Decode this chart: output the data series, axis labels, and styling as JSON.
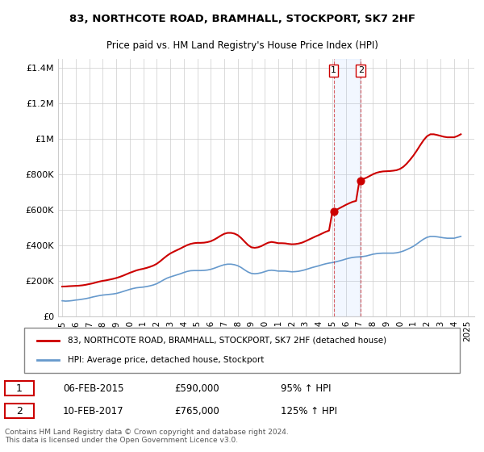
{
  "title": "83, NORTHCOTE ROAD, BRAMHALL, STOCKPORT, SK7 2HF",
  "subtitle": "Price paid vs. HM Land Registry's House Price Index (HPI)",
  "ylabel": "",
  "xlabel": "",
  "background_color": "#ffffff",
  "grid_color": "#cccccc",
  "plot_bg_color": "#ffffff",
  "sale1": {
    "date": 2015.1,
    "price": 590000,
    "label": "1",
    "pct": "95% ↑ HPI",
    "date_str": "06-FEB-2015"
  },
  "sale2": {
    "date": 2017.1,
    "price": 765000,
    "label": "2",
    "pct": "125% ↑ HPI",
    "date_str": "10-FEB-2017"
  },
  "hpi_color": "#6699cc",
  "price_color": "#cc0000",
  "marker_color": "#cc0000",
  "ylim": [
    0,
    1450000
  ],
  "xlim_start": 1995,
  "xlim_end": 2025.5,
  "yticks": [
    0,
    200000,
    400000,
    600000,
    800000,
    1000000,
    1200000,
    1400000
  ],
  "ytick_labels": [
    "£0",
    "£200K",
    "£400K",
    "£600K",
    "£800K",
    "£1M",
    "£1.2M",
    "£1.4M"
  ],
  "xticks": [
    1995,
    1996,
    1997,
    1998,
    1999,
    2000,
    2001,
    2002,
    2003,
    2004,
    2005,
    2006,
    2007,
    2008,
    2009,
    2010,
    2011,
    2012,
    2013,
    2014,
    2015,
    2016,
    2017,
    2018,
    2019,
    2020,
    2021,
    2022,
    2023,
    2024,
    2025
  ],
  "legend_label_red": "83, NORTHCOTE ROAD, BRAMHALL, STOCKPORT, SK7 2HF (detached house)",
  "legend_label_blue": "HPI: Average price, detached house, Stockport",
  "footer": "Contains HM Land Registry data © Crown copyright and database right 2024.\nThis data is licensed under the Open Government Licence v3.0.",
  "hpi_data_x": [
    1995.0,
    1995.25,
    1995.5,
    1995.75,
    1996.0,
    1996.25,
    1996.5,
    1996.75,
    1997.0,
    1997.25,
    1997.5,
    1997.75,
    1998.0,
    1998.25,
    1998.5,
    1998.75,
    1999.0,
    1999.25,
    1999.5,
    1999.75,
    2000.0,
    2000.25,
    2000.5,
    2000.75,
    2001.0,
    2001.25,
    2001.5,
    2001.75,
    2002.0,
    2002.25,
    2002.5,
    2002.75,
    2003.0,
    2003.25,
    2003.5,
    2003.75,
    2004.0,
    2004.25,
    2004.5,
    2004.75,
    2005.0,
    2005.25,
    2005.5,
    2005.75,
    2006.0,
    2006.25,
    2006.5,
    2006.75,
    2007.0,
    2007.25,
    2007.5,
    2007.75,
    2008.0,
    2008.25,
    2008.5,
    2008.75,
    2009.0,
    2009.25,
    2009.5,
    2009.75,
    2010.0,
    2010.25,
    2010.5,
    2010.75,
    2011.0,
    2011.25,
    2011.5,
    2011.75,
    2012.0,
    2012.25,
    2012.5,
    2012.75,
    2013.0,
    2013.25,
    2013.5,
    2013.75,
    2014.0,
    2014.25,
    2014.5,
    2014.75,
    2015.0,
    2015.25,
    2015.5,
    2015.75,
    2016.0,
    2016.25,
    2016.5,
    2016.75,
    2017.0,
    2017.25,
    2017.5,
    2017.75,
    2018.0,
    2018.25,
    2018.5,
    2018.75,
    2019.0,
    2019.25,
    2019.5,
    2019.75,
    2020.0,
    2020.25,
    2020.5,
    2020.75,
    2021.0,
    2021.25,
    2021.5,
    2021.75,
    2022.0,
    2022.25,
    2022.5,
    2022.75,
    2023.0,
    2023.25,
    2023.5,
    2023.75,
    2024.0,
    2024.25,
    2024.5
  ],
  "hpi_data_y": [
    88000,
    86000,
    87000,
    89000,
    92000,
    94000,
    97000,
    100000,
    104000,
    109000,
    113000,
    117000,
    120000,
    122000,
    124000,
    126000,
    129000,
    134000,
    140000,
    146000,
    152000,
    157000,
    161000,
    163000,
    165000,
    168000,
    172000,
    177000,
    184000,
    194000,
    205000,
    215000,
    222000,
    228000,
    234000,
    240000,
    247000,
    253000,
    257000,
    258000,
    258000,
    258000,
    259000,
    261000,
    265000,
    271000,
    278000,
    285000,
    291000,
    294000,
    294000,
    291000,
    285000,
    275000,
    262000,
    250000,
    242000,
    240000,
    242000,
    246000,
    252000,
    258000,
    260000,
    258000,
    255000,
    255000,
    255000,
    253000,
    251000,
    252000,
    254000,
    258000,
    263000,
    269000,
    275000,
    280000,
    285000,
    291000,
    296000,
    300000,
    303000,
    307000,
    312000,
    317000,
    323000,
    328000,
    332000,
    334000,
    335000,
    337000,
    340000,
    345000,
    350000,
    353000,
    355000,
    356000,
    356000,
    356000,
    356000,
    358000,
    362000,
    368000,
    376000,
    385000,
    395000,
    408000,
    422000,
    435000,
    445000,
    450000,
    450000,
    448000,
    445000,
    442000,
    440000,
    440000,
    440000,
    445000,
    450000
  ],
  "price_data_x": [
    1995.0,
    1995.25,
    1995.5,
    1995.75,
    1996.0,
    1996.25,
    1996.5,
    1996.75,
    1997.0,
    1997.25,
    1997.5,
    1997.75,
    1998.0,
    1998.25,
    1998.5,
    1998.75,
    1999.0,
    1999.25,
    1999.5,
    1999.75,
    2000.0,
    2000.25,
    2000.5,
    2000.75,
    2001.0,
    2001.25,
    2001.5,
    2001.75,
    2002.0,
    2002.25,
    2002.5,
    2002.75,
    2003.0,
    2003.25,
    2003.5,
    2003.75,
    2004.0,
    2004.25,
    2004.5,
    2004.75,
    2005.0,
    2005.25,
    2005.5,
    2005.75,
    2006.0,
    2006.25,
    2006.5,
    2006.75,
    2007.0,
    2007.25,
    2007.5,
    2007.75,
    2008.0,
    2008.25,
    2008.5,
    2008.75,
    2009.0,
    2009.25,
    2009.5,
    2009.75,
    2010.0,
    2010.25,
    2010.5,
    2010.75,
    2011.0,
    2011.25,
    2011.5,
    2011.75,
    2012.0,
    2012.25,
    2012.5,
    2012.75,
    2013.0,
    2013.25,
    2013.5,
    2013.75,
    2014.0,
    2014.25,
    2014.5,
    2014.75,
    2015.0,
    2015.25,
    2015.5,
    2015.75,
    2016.0,
    2016.25,
    2016.5,
    2016.75,
    2017.0,
    2017.25,
    2017.5,
    2017.75,
    2018.0,
    2018.25,
    2018.5,
    2018.75,
    2019.0,
    2019.25,
    2019.5,
    2019.75,
    2020.0,
    2020.25,
    2020.5,
    2020.75,
    2021.0,
    2021.25,
    2021.5,
    2021.75,
    2022.0,
    2022.25,
    2022.5,
    2022.75,
    2023.0,
    2023.25,
    2023.5,
    2023.75,
    2024.0,
    2024.25,
    2024.5
  ],
  "price_data_y": [
    168000,
    168500,
    170000,
    171000,
    172000,
    173000,
    175000,
    178000,
    182000,
    186000,
    191000,
    196000,
    200000,
    203000,
    207000,
    211000,
    216000,
    222000,
    229000,
    237000,
    245000,
    252000,
    259000,
    264000,
    268000,
    273000,
    279000,
    286000,
    296000,
    310000,
    326000,
    341000,
    354000,
    364000,
    373000,
    382000,
    392000,
    401000,
    408000,
    412000,
    414000,
    414000,
    415000,
    418000,
    423000,
    432000,
    443000,
    455000,
    465000,
    470000,
    470000,
    466000,
    457000,
    441000,
    421000,
    402000,
    389000,
    386000,
    389000,
    396000,
    406000,
    415000,
    419000,
    416000,
    412000,
    412000,
    411000,
    408000,
    406000,
    407000,
    410000,
    415000,
    423000,
    432000,
    441000,
    450000,
    458000,
    467000,
    476000,
    483000,
    590000,
    598000,
    608000,
    618000,
    628000,
    637000,
    645000,
    650000,
    765000,
    773000,
    780000,
    790000,
    800000,
    808000,
    813000,
    816000,
    817000,
    818000,
    820000,
    823000,
    830000,
    842000,
    860000,
    882000,
    906000,
    934000,
    964000,
    992000,
    1014000,
    1025000,
    1025000,
    1021000,
    1016000,
    1011000,
    1008000,
    1008000,
    1008000,
    1015000,
    1025000
  ]
}
